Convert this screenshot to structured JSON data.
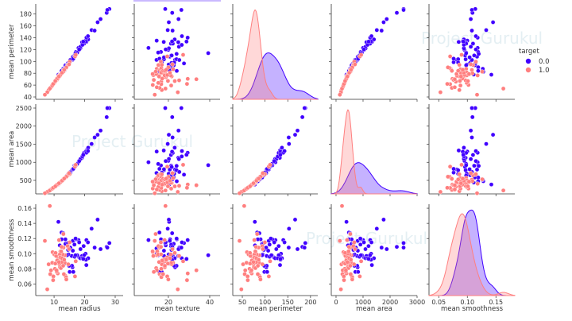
{
  "watermark": "Project Gurukul",
  "chart_data": {
    "type": "scatter",
    "layout": "pairplot",
    "diagonal": "kde",
    "grid": false,
    "legend": {
      "title": "target",
      "placement": "right",
      "entries": [
        "0.0",
        "1.0"
      ]
    },
    "hue": "target",
    "colors": {
      "0.0": "#4000ff",
      "1.0": "#ff7f7f"
    },
    "variables": [
      "mean radius",
      "mean texture",
      "mean perimeter",
      "mean area",
      "mean smoothness"
    ],
    "row_variables": [
      "mean perimeter",
      "mean area",
      "mean smoothness"
    ],
    "col_variables": [
      "mean radius",
      "mean texture",
      "mean perimeter",
      "mean area",
      "mean smoothness"
    ],
    "axes": {
      "mean radius": {
        "range": [
          4.0,
          32.6
        ],
        "ticks": [
          10,
          20,
          30
        ],
        "tick_labels": [
          "10",
          "20",
          "30"
        ]
      },
      "mean texture": {
        "range": [
          3.5,
          45
        ],
        "ticks": [
          20,
          40
        ],
        "tick_labels": [
          "20",
          "40"
        ]
      },
      "mean perimeter": {
        "range": [
          29,
          216
        ],
        "ticks": [
          50,
          100,
          150,
          200
        ],
        "tick_labels": [
          "50",
          "100",
          "150",
          "200"
        ],
        "y_range": [
          36,
          197
        ],
        "y_ticks": [
          40,
          60,
          80,
          100,
          120,
          140,
          160,
          180
        ],
        "y_tick_labels": [
          "40",
          "60",
          "80",
          "100",
          "120",
          "140",
          "160",
          "180"
        ]
      },
      "mean area": {
        "range": [
          -176,
          3000
        ],
        "ticks": [
          0,
          1000,
          2000,
          3000
        ],
        "tick_labels": [
          "0",
          "1000",
          "2000",
          "3000"
        ],
        "y_range": [
          126,
          2610
        ],
        "y_ticks": [
          500,
          1000,
          1500,
          2000,
          2500
        ],
        "y_tick_labels": [
          "500",
          "1000",
          "1500",
          "2000",
          "2500"
        ]
      },
      "mean smoothness": {
        "range": [
          0.033,
          0.183
        ],
        "ticks": [
          0.05,
          0.1,
          0.15
        ],
        "tick_labels": [
          "0.05",
          "0.10",
          "0.15"
        ],
        "y_range": [
          0.0447,
          0.1653
        ],
        "y_ticks": [
          0.06,
          0.08,
          0.1,
          0.12,
          0.14,
          0.16
        ],
        "y_tick_labels": [
          "0.06",
          "0.08",
          "0.10",
          "0.12",
          "0.14",
          "0.16"
        ]
      }
    },
    "series": [
      {
        "name": "0.0",
        "points": [
          [
            17.99,
            10.38,
            122.8,
            1001,
            0.118
          ],
          [
            20.57,
            17.77,
            132.9,
            1326,
            0.085
          ],
          [
            19.69,
            21.25,
            130.0,
            1203,
            0.11
          ],
          [
            11.42,
            20.38,
            77.6,
            386,
            0.142
          ],
          [
            20.29,
            14.34,
            135.1,
            1297,
            0.1
          ],
          [
            12.45,
            15.7,
            82.6,
            477,
            0.128
          ],
          [
            18.25,
            19.98,
            119.6,
            1040,
            0.095
          ],
          [
            13.71,
            20.83,
            90.2,
            578,
            0.119
          ],
          [
            13.0,
            21.82,
            87.5,
            520,
            0.127
          ],
          [
            12.46,
            24.04,
            83.97,
            476,
            0.119
          ],
          [
            16.02,
            23.24,
            102.7,
            798,
            0.082
          ],
          [
            15.78,
            17.89,
            103.6,
            781,
            0.097
          ],
          [
            19.17,
            24.8,
            132.4,
            1123,
            0.097
          ],
          [
            15.85,
            23.95,
            103.7,
            782,
            0.084
          ],
          [
            13.73,
            22.61,
            93.6,
            578,
            0.113
          ],
          [
            14.54,
            27.54,
            96.7,
            658,
            0.114
          ],
          [
            14.68,
            20.13,
            94.7,
            684,
            0.099
          ],
          [
            16.13,
            20.68,
            108.1,
            799,
            0.117
          ],
          [
            19.81,
            22.15,
            130.0,
            1260,
            0.098
          ],
          [
            15.34,
            14.26,
            102.5,
            704,
            0.107
          ],
          [
            21.16,
            23.04,
            137.2,
            1404,
            0.094
          ],
          [
            16.65,
            21.38,
            110.0,
            904,
            0.112
          ],
          [
            17.14,
            16.4,
            116.0,
            912,
            0.119
          ],
          [
            14.58,
            21.53,
            97.4,
            645,
            0.105
          ],
          [
            18.61,
            20.25,
            122.1,
            1094,
            0.094
          ],
          [
            15.3,
            25.27,
            102.4,
            732,
            0.108
          ],
          [
            17.57,
            15.05,
            115.0,
            955,
            0.098
          ],
          [
            18.63,
            25.11,
            124.8,
            1088,
            0.106
          ],
          [
            11.84,
            18.7,
            77.9,
            441,
            0.111
          ],
          [
            17.02,
            23.98,
            112.8,
            899,
            0.12
          ],
          [
            19.27,
            26.47,
            127.9,
            1162,
            0.094
          ],
          [
            16.13,
            17.88,
            107.0,
            807,
            0.104
          ],
          [
            16.74,
            21.59,
            110.1,
            869,
            0.096
          ],
          [
            14.25,
            21.72,
            93.6,
            633,
            0.098
          ],
          [
            20.44,
            21.78,
            133.8,
            1293,
            0.092
          ],
          [
            22.27,
            19.67,
            152.8,
            1509,
            0.133
          ],
          [
            23.27,
            22.04,
            152.1,
            1686,
            0.108
          ],
          [
            24.25,
            20.2,
            166.2,
            1761,
            0.145
          ],
          [
            25.22,
            24.91,
            171.5,
            1878,
            0.106
          ],
          [
            27.22,
            21.87,
            182.1,
            2250,
            0.109
          ],
          [
            28.11,
            18.47,
            188.5,
            2499,
            0.114
          ],
          [
            27.42,
            26.27,
            186.9,
            2501,
            0.108
          ],
          [
            20.6,
            29.33,
            140.1,
            1265,
            0.118
          ],
          [
            21.09,
            26.57,
            142.7,
            1311,
            0.115
          ],
          [
            19.55,
            28.77,
            133.6,
            1207,
            0.093
          ],
          [
            17.0,
            39.28,
            114.0,
            920,
            0.098
          ],
          [
            18.22,
            18.7,
            120.3,
            1033,
            0.115
          ],
          [
            13.4,
            20.5,
            85.0,
            560,
            0.087
          ],
          [
            14.9,
            22.8,
            98.0,
            680,
            0.084
          ],
          [
            15.1,
            16.8,
            98.6,
            716,
            0.076
          ],
          [
            16.3,
            15.7,
            104.7,
            819,
            0.076
          ]
        ]
      },
      {
        "name": "1.0",
        "points": [
          [
            13.54,
            14.36,
            87.46,
            566,
            0.098
          ],
          [
            13.08,
            15.71,
            85.63,
            520,
            0.108
          ],
          [
            9.5,
            12.44,
            60.34,
            274,
            0.102
          ],
          [
            13.03,
            18.42,
            82.61,
            523,
            0.09
          ],
          [
            8.2,
            16.84,
            51.71,
            201,
            0.086
          ],
          [
            12.05,
            14.63,
            78.04,
            449,
            0.103
          ],
          [
            13.49,
            22.3,
            86.91,
            561,
            0.088
          ],
          [
            11.76,
            21.6,
            74.72,
            427,
            0.086
          ],
          [
            13.64,
            16.34,
            87.21,
            572,
            0.071
          ],
          [
            11.94,
            18.24,
            75.71,
            437,
            0.082
          ],
          [
            11.52,
            18.75,
            73.34,
            410,
            0.093
          ],
          [
            10.26,
            16.58,
            65.85,
            321,
            0.08
          ],
          [
            8.73,
            15.75,
            55.27,
            235,
            0.073
          ],
          [
            12.06,
            12.74,
            76.84,
            449,
            0.097
          ],
          [
            11.3,
            18.19,
            73.93,
            389,
            0.093
          ],
          [
            9.78,
            16.56,
            61.68,
            290,
            0.07
          ],
          [
            12.21,
            14.09,
            78.78,
            462,
            0.081
          ],
          [
            7.76,
            24.54,
            47.92,
            181,
            0.053
          ],
          [
            6.98,
            13.43,
            43.79,
            143,
            0.117
          ],
          [
            14.44,
            15.18,
            93.97,
            640,
            0.11
          ],
          [
            12.45,
            16.41,
            79.85,
            478,
            0.109
          ],
          [
            10.08,
            15.11,
            63.76,
            317,
            0.099
          ],
          [
            9.0,
            14.4,
            56.36,
            246,
            0.078
          ],
          [
            11.2,
            29.37,
            70.67,
            386,
            0.074
          ],
          [
            10.65,
            25.22,
            68.01,
            347,
            0.097
          ],
          [
            13.9,
            16.62,
            88.97,
            599,
            0.069
          ],
          [
            15.1,
            16.39,
            99.58,
            674,
            0.115
          ],
          [
            12.47,
            17.31,
            80.45,
            480,
            0.089
          ],
          [
            11.62,
            18.18,
            76.38,
            408,
            0.118
          ],
          [
            8.6,
            18.6,
            54.09,
            221,
            0.163
          ],
          [
            10.9,
            12.96,
            68.69,
            366,
            0.076
          ],
          [
            12.78,
            16.49,
            81.37,
            502,
            0.099
          ],
          [
            14.64,
            16.85,
            94.21,
            666,
            0.086
          ],
          [
            9.4,
            21.38,
            59.3,
            270,
            0.088
          ],
          [
            13.2,
            17.43,
            84.13,
            541,
            0.073
          ],
          [
            11.89,
            21.17,
            76.39,
            433,
            0.099
          ],
          [
            12.96,
            18.29,
            84.18,
            525,
            0.084
          ],
          [
            10.51,
            23.09,
            66.85,
            335,
            0.101
          ],
          [
            16.84,
            19.46,
            108.4,
            880,
            0.07
          ],
          [
            13.05,
            13.84,
            82.71,
            530,
            0.126
          ],
          [
            12.32,
            12.39,
            78.85,
            464,
            0.103
          ],
          [
            10.8,
            33.56,
            70.0,
            365,
            0.078
          ],
          [
            17.08,
            27.15,
            111.2,
            930,
            0.09
          ],
          [
            14.0,
            20.0,
            90.0,
            600,
            0.066
          ],
          [
            9.7,
            29.0,
            62.0,
            295,
            0.065
          ],
          [
            14.9,
            22.0,
            95.0,
            700,
            0.106
          ],
          [
            12.0,
            19.5,
            77.0,
            445,
            0.095
          ],
          [
            11.0,
            17.0,
            71.0,
            380,
            0.091
          ],
          [
            12.6,
            20.8,
            81.0,
            490,
            0.094
          ],
          [
            13.3,
            19.0,
            86.0,
            550,
            0.092
          ],
          [
            10.4,
            19.8,
            67.0,
            335,
            0.087
          ],
          [
            11.6,
            15.5,
            74.5,
            420,
            0.089
          ]
        ]
      }
    ]
  }
}
